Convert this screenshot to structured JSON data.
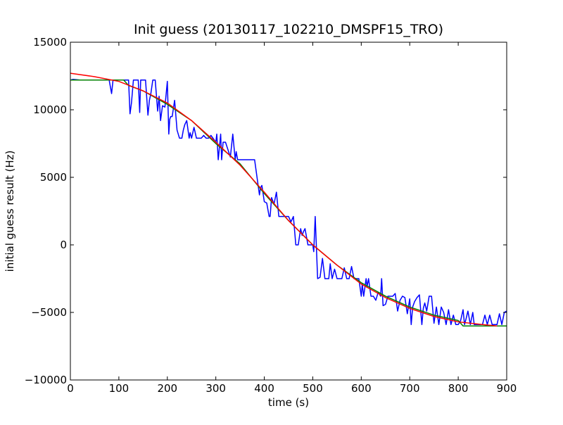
{
  "chart_data": {
    "type": "line",
    "title": "Init guess (20130117_102210_DMSPF15_TRO)",
    "xlabel": "time (s)",
    "ylabel": "initial guess result (Hz)",
    "xlim": [
      0,
      900
    ],
    "ylim": [
      -10000,
      15000
    ],
    "xticks": [
      0,
      100,
      200,
      300,
      400,
      500,
      600,
      700,
      800,
      900
    ],
    "yticks": [
      -10000,
      -5000,
      0,
      5000,
      10000,
      15000
    ],
    "xtick_labels": [
      "0",
      "100",
      "200",
      "300",
      "400",
      "500",
      "600",
      "700",
      "800",
      "900"
    ],
    "ytick_labels": [
      "−10000",
      "−5000",
      "0",
      "5000",
      "10000",
      "15000"
    ],
    "grid": false,
    "legend": "none",
    "series": [
      {
        "color": "#0000ff",
        "x": [
          0,
          5,
          20,
          80,
          85,
          88,
          90,
          110,
          120,
          123,
          126,
          130,
          140,
          143,
          145,
          150,
          155,
          160,
          163,
          166,
          170,
          175,
          180,
          183,
          186,
          190,
          195,
          200,
          203,
          205,
          207,
          210,
          215,
          220,
          225,
          230,
          233,
          236,
          240,
          245,
          247,
          250,
          255,
          260,
          270,
          275,
          280,
          285,
          290,
          300,
          302,
          305,
          310,
          312,
          315,
          320,
          330,
          335,
          340,
          342,
          345,
          350,
          355,
          360,
          370,
          380,
          390,
          392,
          395,
          400,
          405,
          410,
          412,
          415,
          420,
          425,
          430,
          433,
          436,
          440,
          445,
          450,
          455,
          460,
          465,
          470,
          475,
          478,
          481,
          484,
          490,
          495,
          500,
          502,
          505,
          510,
          515,
          520,
          525,
          530,
          533,
          536,
          540,
          545,
          550,
          555,
          560,
          565,
          570,
          575,
          580,
          585,
          590,
          595,
          600,
          602,
          605,
          610,
          612,
          615,
          620,
          625,
          630,
          635,
          640,
          642,
          645,
          650,
          655,
          660,
          665,
          670,
          675,
          680,
          685,
          690,
          695,
          700,
          703,
          706,
          710,
          715,
          720,
          725,
          728,
          731,
          735,
          740,
          745,
          750,
          755,
          760,
          765,
          770,
          775,
          780,
          785,
          790,
          795,
          800,
          805,
          810,
          813,
          816,
          820,
          825,
          830,
          833,
          836,
          840,
          845,
          850,
          855,
          860,
          865,
          870,
          875,
          880,
          885,
          890,
          895,
          900
        ],
        "y": [
          12200,
          12250,
          12200,
          12200,
          11200,
          12200,
          12200,
          12200,
          12200,
          9700,
          10500,
          12200,
          12200,
          9800,
          12200,
          12200,
          12200,
          9600,
          10700,
          11200,
          12200,
          12200,
          9900,
          11000,
          9200,
          10300,
          10200,
          12100,
          8200,
          9300,
          9500,
          9500,
          10700,
          8500,
          7900,
          7900,
          8500,
          8900,
          9200,
          7900,
          8300,
          7900,
          8700,
          7900,
          7900,
          8100,
          7900,
          7900,
          8100,
          7600,
          8200,
          6300,
          8200,
          6300,
          7600,
          7600,
          6500,
          8200,
          6300,
          6900,
          6300,
          6300,
          6300,
          6300,
          6300,
          6300,
          3700,
          4200,
          4400,
          3200,
          3100,
          2100,
          2100,
          3500,
          3000,
          3900,
          2100,
          2100,
          2100,
          2100,
          2100,
          2100,
          1700,
          2100,
          0,
          0,
          1200,
          700,
          1000,
          1200,
          0,
          0,
          0,
          -500,
          2100,
          -2500,
          -2400,
          -1000,
          -2500,
          -2500,
          -2500,
          -1400,
          -2500,
          -1800,
          -2500,
          -2500,
          -2500,
          -1700,
          -2500,
          -2500,
          -1600,
          -2500,
          -2500,
          -2500,
          -3800,
          -2900,
          -3800,
          -2500,
          -3100,
          -2500,
          -3800,
          -3800,
          -4100,
          -3500,
          -3800,
          -2500,
          -4500,
          -4400,
          -3800,
          -3800,
          -3800,
          -3600,
          -4900,
          -4100,
          -3800,
          -3900,
          -5100,
          -4000,
          -5900,
          -4600,
          -4200,
          -3900,
          -3700,
          -5900,
          -4700,
          -4300,
          -4900,
          -3800,
          -3800,
          -5800,
          -4600,
          -5900,
          -4600,
          -5000,
          -5900,
          -4800,
          -5900,
          -5200,
          -5900,
          -5900,
          -5600,
          -4800,
          -5900,
          -5500,
          -4900,
          -5900,
          -5000,
          -5900,
          -5900,
          -5900,
          -5900,
          -5900,
          -5200,
          -5900,
          -5200,
          -5900,
          -5900,
          -5900,
          -5100,
          -5900,
          -5000,
          -4900
        ],
        "width": 1.5
      },
      {
        "color": "#008000",
        "x": [
          0,
          110,
          120,
          150,
          200,
          250,
          300,
          350,
          400,
          450,
          500,
          550,
          600,
          650,
          700,
          750,
          800,
          810,
          900
        ],
        "y": [
          12200,
          12200,
          11800,
          11400,
          10400,
          9200,
          7500,
          6000,
          3800,
          1800,
          0,
          -1500,
          -2800,
          -3800,
          -4600,
          -5200,
          -5600,
          -6000,
          -6000
        ],
        "width": 1.5
      },
      {
        "color": "#ff0000",
        "x": [
          0,
          50,
          100,
          150,
          200,
          250,
          300,
          350,
          400,
          450,
          500,
          550,
          600,
          650,
          700,
          750,
          800,
          850,
          880
        ],
        "y": [
          12700,
          12450,
          12100,
          11400,
          10500,
          9200,
          7600,
          5900,
          3900,
          1800,
          0,
          -1500,
          -2900,
          -3900,
          -4700,
          -5300,
          -5700,
          -5900,
          -6000
        ],
        "width": 1.5
      }
    ]
  }
}
